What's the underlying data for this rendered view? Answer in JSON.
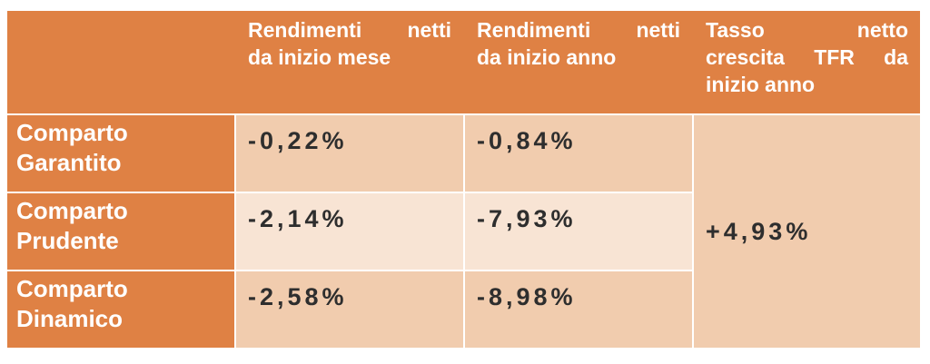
{
  "colors": {
    "header_bg": "#DF8144",
    "row_tint_dark": "#F1CCAE",
    "row_tint_light": "#F8E4D4",
    "text_dark": "#2E2E2E",
    "text_light": "#FFFFFF"
  },
  "table": {
    "header": {
      "corner": "",
      "columns": [
        {
          "label": "Rendimenti netti da inizio mese",
          "lines": [
            [
              "Rendimenti",
              "netti"
            ],
            [
              "da inizio mese"
            ]
          ]
        },
        {
          "label": "Rendimenti netti da inizio anno",
          "lines": [
            [
              "Rendimenti",
              "netti"
            ],
            [
              "da inizio anno"
            ]
          ]
        },
        {
          "label": "Tasso netto crescita TFR da inizio anno",
          "lines": [
            [
              "Tasso",
              "netto"
            ],
            [
              "crescita",
              "TFR",
              "da"
            ],
            [
              "inizio anno"
            ]
          ]
        }
      ]
    },
    "rows": [
      {
        "label": "Comparto\nGarantito",
        "net_return_month": "-0,22%",
        "net_return_year": "-0,84%"
      },
      {
        "label": "Comparto\nPrudente",
        "net_return_month": "-2,14%",
        "net_return_year": "-7,93%"
      },
      {
        "label": "Comparto\nDinamico",
        "net_return_month": "-2,58%",
        "net_return_year": "-8,98%"
      }
    ],
    "tfr_growth_value": "+4,93%"
  }
}
